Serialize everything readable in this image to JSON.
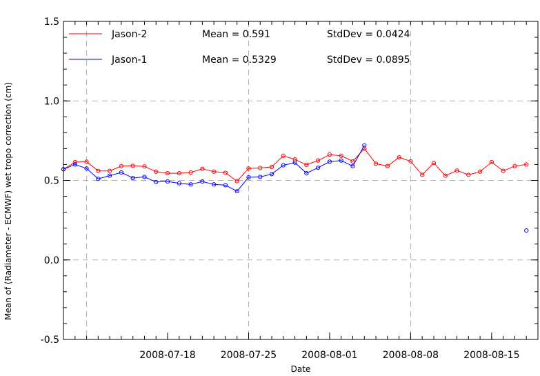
{
  "chart_data": {
    "type": "line",
    "xlabel": "Date",
    "ylabel": "Mean of (Radiameter - ECMWF) wet tropo correction (cm)",
    "x_range": [
      "2008-07-09",
      "2008-08-19"
    ],
    "ylim": [
      -0.5,
      1.5
    ],
    "x_ticks": [
      "2008-07-18",
      "2008-07-25",
      "2008-08-01",
      "2008-08-08",
      "2008-08-15"
    ],
    "y_ticks": [
      "-0.5",
      "0.0",
      "0.5",
      "1.0",
      "1.5"
    ],
    "grid": true,
    "legend_position": "top-left",
    "series": [
      {
        "name": "Jason-2",
        "mean_label": "Mean = 0.591",
        "std_label": "StdDev = 0.0424",
        "color": "#ff0000",
        "points": [
          [
            "2008-07-09",
            0.57
          ],
          [
            "2008-07-10",
            0.615
          ],
          [
            "2008-07-11",
            0.618
          ],
          [
            "2008-07-12",
            0.56
          ],
          [
            "2008-07-13",
            0.56
          ],
          [
            "2008-07-14",
            0.59
          ],
          [
            "2008-07-15",
            0.592
          ],
          [
            "2008-07-16",
            0.588
          ],
          [
            "2008-07-17",
            0.555
          ],
          [
            "2008-07-18",
            0.545
          ],
          [
            "2008-07-19",
            0.545
          ],
          [
            "2008-07-20",
            0.55
          ],
          [
            "2008-07-21",
            0.573
          ],
          [
            "2008-07-22",
            0.555
          ],
          [
            "2008-07-23",
            0.548
          ],
          [
            "2008-07-24",
            0.495
          ],
          [
            "2008-07-25",
            0.575
          ],
          [
            "2008-07-26",
            0.578
          ],
          [
            "2008-07-27",
            0.585
          ],
          [
            "2008-07-28",
            0.655
          ],
          [
            "2008-07-29",
            0.632
          ],
          [
            "2008-07-30",
            0.598
          ],
          [
            "2008-07-31",
            0.625
          ],
          [
            "2008-08-01",
            0.662
          ],
          [
            "2008-08-02",
            0.655
          ],
          [
            "2008-08-03",
            0.62
          ],
          [
            "2008-08-04",
            0.7
          ],
          [
            "2008-08-05",
            0.605
          ],
          [
            "2008-08-06",
            0.59
          ],
          [
            "2008-08-07",
            0.645
          ],
          [
            "2008-08-08",
            0.62
          ],
          [
            "2008-08-09",
            0.535
          ],
          [
            "2008-08-10",
            0.61
          ],
          [
            "2008-08-11",
            0.53
          ],
          [
            "2008-08-12",
            0.562
          ],
          [
            "2008-08-13",
            0.535
          ],
          [
            "2008-08-14",
            0.555
          ],
          [
            "2008-08-15",
            0.615
          ],
          [
            "2008-08-16",
            0.56
          ],
          [
            "2008-08-17",
            0.59
          ],
          [
            "2008-08-18",
            0.6
          ]
        ]
      },
      {
        "name": "Jason-1",
        "mean_label": "Mean = 0.5329",
        "std_label": "StdDev = 0.0895",
        "color": "#0000ff",
        "points": [
          [
            "2008-07-09",
            0.57
          ],
          [
            "2008-07-10",
            0.6
          ],
          [
            "2008-07-11",
            0.575
          ],
          [
            "2008-07-12",
            0.51
          ],
          [
            "2008-07-13",
            0.53
          ],
          [
            "2008-07-14",
            0.55
          ],
          [
            "2008-07-15",
            0.515
          ],
          [
            "2008-07-16",
            0.522
          ],
          [
            "2008-07-17",
            0.49
          ],
          [
            "2008-07-18",
            0.493
          ],
          [
            "2008-07-19",
            0.482
          ],
          [
            "2008-07-20",
            0.475
          ],
          [
            "2008-07-21",
            0.493
          ],
          [
            "2008-07-22",
            0.475
          ],
          [
            "2008-07-23",
            0.47
          ],
          [
            "2008-07-24",
            0.432
          ],
          [
            "2008-07-25",
            0.52
          ],
          [
            "2008-07-26",
            0.522
          ],
          [
            "2008-07-27",
            0.54
          ],
          [
            "2008-07-28",
            0.595
          ],
          [
            "2008-07-29",
            0.612
          ],
          [
            "2008-07-30",
            0.545
          ],
          [
            "2008-07-31",
            0.58
          ],
          [
            "2008-08-01",
            0.618
          ],
          [
            "2008-08-02",
            0.625
          ],
          [
            "2008-08-03",
            0.59
          ],
          [
            "2008-08-04",
            0.72
          ]
        ],
        "extra_points": [
          [
            "2008-08-18",
            0.185
          ]
        ]
      }
    ]
  }
}
